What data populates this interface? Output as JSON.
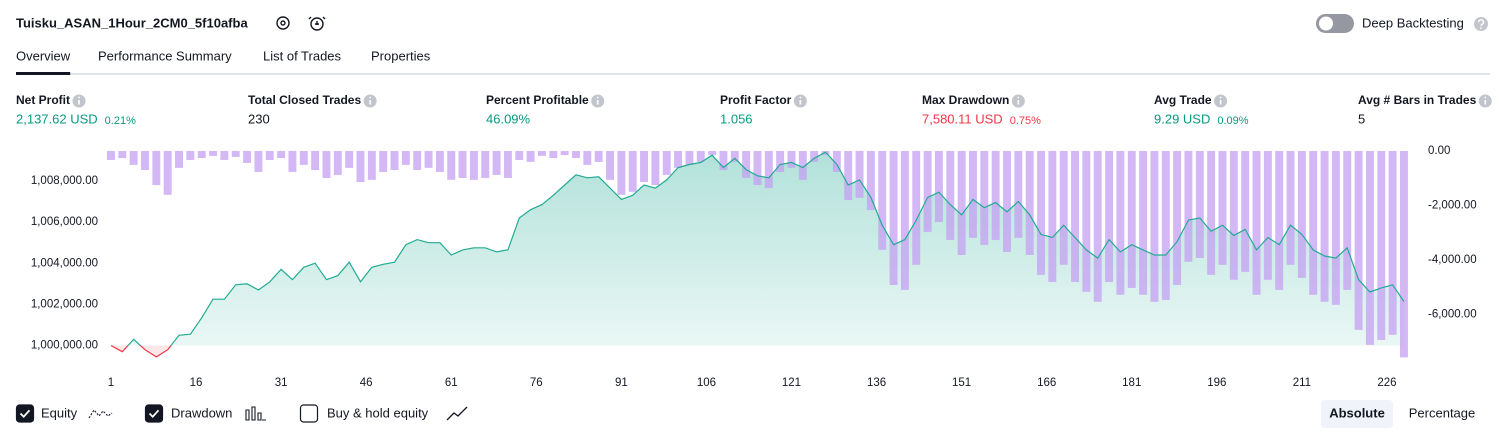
{
  "header": {
    "title": "Tuisku_ASAN_1Hour_2CM0_5f10afba",
    "toggle_label": "Deep Backtesting"
  },
  "tabs": [
    "Overview",
    "Performance Summary",
    "List of Trades",
    "Properties"
  ],
  "metrics": [
    {
      "label": "Net Profit",
      "value": "2,137.62 USD",
      "change": "0.21%",
      "color": "#089981"
    },
    {
      "label": "Total Closed Trades",
      "value": "230",
      "color": "#131722"
    },
    {
      "label": "Percent Profitable",
      "value": "46.09%",
      "color": "#089981"
    },
    {
      "label": "Profit Factor",
      "value": "1.056",
      "color": "#089981"
    },
    {
      "label": "Max Drawdown",
      "value": "7,580.11 USD",
      "change": "0.75%",
      "color": "#f23645"
    },
    {
      "label": "Avg Trade",
      "value": "9.29 USD",
      "change": "0.09%",
      "color": "#089981"
    },
    {
      "label": "Avg # Bars in Trades",
      "value": "5",
      "color": "#131722"
    }
  ],
  "chart_data": {
    "type": "combo",
    "x": [
      1,
      3,
      5,
      7,
      9,
      11,
      13,
      15,
      17,
      19,
      21,
      23,
      25,
      27,
      29,
      31,
      33,
      35,
      37,
      39,
      41,
      43,
      45,
      47,
      49,
      51,
      53,
      55,
      57,
      59,
      61,
      63,
      65,
      67,
      69,
      71,
      73,
      75,
      77,
      79,
      81,
      83,
      85,
      87,
      89,
      91,
      93,
      95,
      97,
      99,
      101,
      103,
      105,
      107,
      109,
      111,
      113,
      115,
      117,
      119,
      121,
      123,
      125,
      127,
      129,
      131,
      133,
      135,
      137,
      139,
      141,
      143,
      145,
      147,
      149,
      151,
      153,
      155,
      157,
      159,
      161,
      163,
      165,
      167,
      169,
      171,
      173,
      175,
      177,
      179,
      181,
      183,
      185,
      187,
      189,
      191,
      193,
      195,
      197,
      199,
      201,
      203,
      205,
      207,
      209,
      211,
      213,
      215,
      217,
      219,
      221,
      223,
      225,
      227,
      229
    ],
    "series": [
      {
        "name": "Equity",
        "type": "area",
        "color": "#22ab94",
        "negative_color": "#f23645",
        "values": [
          1000000,
          999700,
          1000300,
          999800,
          999450,
          999800,
          1000500,
          1000550,
          1001350,
          1002250,
          1002250,
          1002950,
          1003000,
          1002700,
          1003100,
          1003700,
          1003200,
          1003800,
          1004000,
          1003200,
          1003400,
          1004050,
          1003100,
          1003800,
          1003950,
          1004050,
          1004900,
          1005150,
          1005000,
          1005000,
          1004400,
          1004650,
          1004750,
          1004750,
          1004550,
          1004650,
          1006200,
          1006600,
          1006850,
          1007300,
          1007800,
          1008300,
          1008150,
          1008200,
          1007650,
          1007100,
          1007300,
          1007800,
          1007650,
          1008050,
          1008650,
          1008800,
          1008900,
          1009250,
          1008650,
          1009100,
          1008550,
          1008250,
          1008150,
          1008800,
          1008900,
          1008650,
          1009100,
          1009400,
          1008800,
          1007800,
          1008050,
          1007200,
          1005850,
          1004900,
          1005150,
          1006100,
          1007200,
          1007450,
          1006850,
          1006350,
          1007100,
          1006700,
          1006950,
          1006500,
          1007000,
          1006350,
          1005400,
          1005250,
          1005850,
          1005250,
          1004650,
          1004250,
          1005150,
          1004550,
          1004900,
          1004650,
          1004400,
          1004400,
          1005050,
          1006100,
          1006200,
          1005550,
          1005850,
          1005350,
          1005650,
          1004650,
          1005250,
          1004900,
          1005850,
          1005400,
          1004650,
          1004350,
          1004250,
          1004750,
          1003200,
          1002600,
          1002800,
          1002950,
          1002137.62
        ]
      },
      {
        "name": "Drawdown",
        "type": "bar",
        "axis": "y2",
        "color": "#c39cf3",
        "values": [
          -330,
          -260,
          -510,
          -700,
          -1250,
          -1610,
          -620,
          -330,
          -260,
          -180,
          -330,
          -220,
          -440,
          -770,
          -330,
          -260,
          -770,
          -510,
          -700,
          -990,
          -880,
          -620,
          -1140,
          -1060,
          -770,
          -700,
          -510,
          -700,
          -620,
          -770,
          -1060,
          -990,
          -1060,
          -990,
          -880,
          -990,
          -330,
          -400,
          -180,
          -260,
          -150,
          -260,
          -510,
          -400,
          -1060,
          -1610,
          -1500,
          -1140,
          -1250,
          -880,
          -620,
          -510,
          -400,
          -150,
          -700,
          -400,
          -990,
          -1250,
          -1360,
          -770,
          -620,
          -1060,
          -400,
          -150,
          -770,
          -1800,
          -1720,
          -2170,
          -3630,
          -4920,
          -5100,
          -4180,
          -2970,
          -2610,
          -3270,
          -3820,
          -3190,
          -3450,
          -3270,
          -3710,
          -3190,
          -3820,
          -4550,
          -4810,
          -4180,
          -4810,
          -5170,
          -5540,
          -4810,
          -5280,
          -5030,
          -5280,
          -5540,
          -5470,
          -4920,
          -4070,
          -3930,
          -4550,
          -4180,
          -4730,
          -4440,
          -5280,
          -4730,
          -5100,
          -4180,
          -4660,
          -5280,
          -5540,
          -5650,
          -5100,
          -6570,
          -7120,
          -6940,
          -6750,
          -7580.11
        ]
      }
    ],
    "xlim": [
      0,
      231
    ],
    "xticks": [
      1,
      16,
      31,
      46,
      61,
      76,
      91,
      106,
      121,
      136,
      151,
      166,
      181,
      196,
      211,
      226
    ],
    "ylim": [
      999200,
      1009600
    ],
    "yticks": [
      {
        "value": 1000000,
        "label": "1,000,000.00"
      },
      {
        "value": 1002000,
        "label": "1,002,000.00"
      },
      {
        "value": 1004000,
        "label": "1,004,000.00"
      },
      {
        "value": 1006000,
        "label": "1,006,000.00"
      },
      {
        "value": 1008000,
        "label": "1,008,000.00"
      }
    ],
    "y2lim": [
      -7750,
      110
    ],
    "y2ticks": [
      {
        "value": 0,
        "label": "0.00"
      },
      {
        "value": -2000,
        "label": "-2,000.00"
      },
      {
        "value": -4000,
        "label": "-4,000.00"
      },
      {
        "value": -6000,
        "label": "-6,000.00"
      }
    ],
    "grid": false
  },
  "controls": {
    "buy_hold": "Buy & hold equity",
    "scale_buttons": [
      "Absolute",
      "Percentage"
    ]
  }
}
